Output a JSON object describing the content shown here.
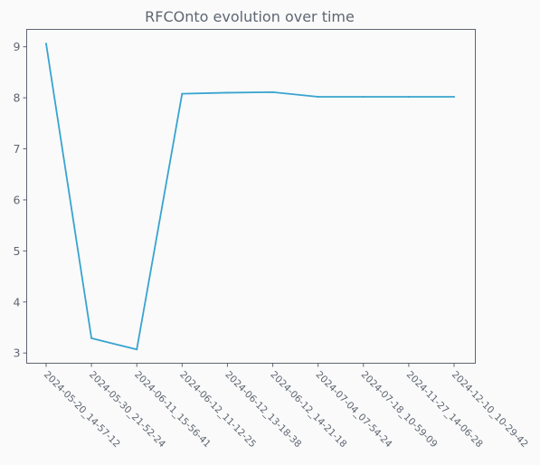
{
  "chart_data": {
    "type": "line",
    "title": "RFCOnto evolution over time",
    "xlabel": "",
    "ylabel": "",
    "categories": [
      "2024-05-20_14-57-12",
      "2024-05-30_21-52-24",
      "2024-06-11_15-56-41",
      "2024-06-12_11-12-25",
      "2024-06-12_13-18-38",
      "2024-06-12_14-21-18",
      "2024-07-04_07-54-24",
      "2024-07-18_10-59-09",
      "2024-11-27_14-06-28",
      "2024-12-10_10-29-42"
    ],
    "series": [
      {
        "values": [
          9.06,
          3.29,
          3.07,
          8.08,
          8.1,
          8.11,
          8.02,
          8.02,
          8.02,
          8.02
        ],
        "color": "#38a4cf"
      }
    ],
    "yticks": [
      3,
      4,
      5,
      6,
      7,
      8,
      9
    ],
    "ylim": [
      2.8,
      9.34
    ],
    "grid": false,
    "legend": "none",
    "colors": {
      "axis": "#5f6672",
      "text": "#5f6672",
      "background": "#fafafa"
    }
  }
}
